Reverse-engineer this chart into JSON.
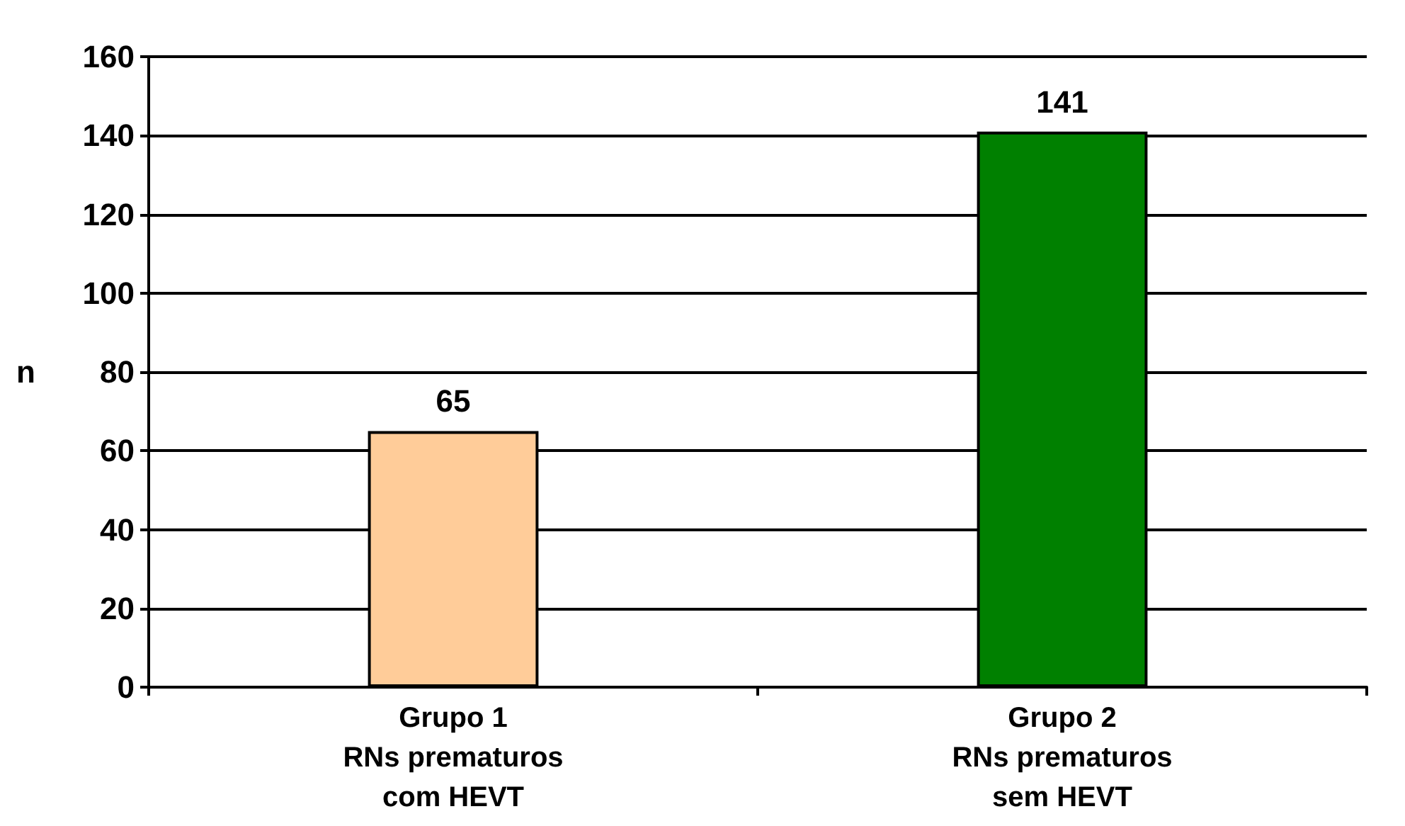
{
  "chart_data": {
    "type": "bar",
    "ylabel": "n",
    "categories": [
      "Grupo 1\nRNs prematuros\ncom HEVT",
      "Grupo 2\nRNs prematuros\nsem HEVT"
    ],
    "values": [
      65,
      141
    ],
    "colors": [
      "#ffcc99",
      "#008000"
    ],
    "ylim": [
      0,
      160
    ],
    "yticks": [
      0,
      20,
      40,
      60,
      80,
      100,
      120,
      140,
      160
    ],
    "grid": "y",
    "data_labels": true
  }
}
